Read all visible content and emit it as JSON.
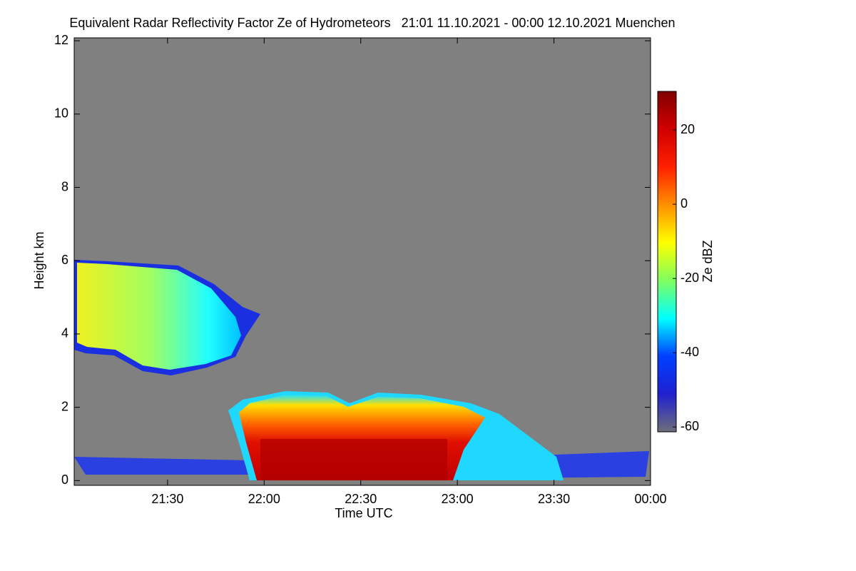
{
  "chart_data": {
    "type": "heatmap",
    "title": "Equivalent Radar Reflectivity Factor Ze of Hydrometeors   21:01 11.10.2021 - 00:00 12.10.2021 Muenchen",
    "x_label": "Time UTC",
    "y_label": "Height km",
    "xlim": [
      21.0167,
      24.0
    ],
    "xticks": [
      {
        "value": 21.5,
        "label": "21:30"
      },
      {
        "value": 22.0,
        "label": "22:00"
      },
      {
        "value": 22.5,
        "label": "22:30"
      },
      {
        "value": 23.0,
        "label": "23:00"
      },
      {
        "value": 23.5,
        "label": "23:30"
      },
      {
        "value": 24.0,
        "label": "00:00"
      }
    ],
    "ylim": [
      -0.13,
      12.08
    ],
    "yticks": [
      0,
      2,
      4,
      6,
      8,
      10,
      12
    ],
    "colorbar": {
      "label": "Ze dBZ",
      "clim": [
        -61.3,
        30.4
      ],
      "ticks": [
        -60,
        -40,
        -20,
        0,
        20
      ],
      "colormap": [
        "#6e6e7a",
        "#2020d0",
        "#0040ff",
        "#00ffff",
        "#80ff60",
        "#ffff00",
        "#ff9000",
        "#ff2000",
        "#d00000",
        "#800000"
      ]
    },
    "background": "#808080"
  }
}
